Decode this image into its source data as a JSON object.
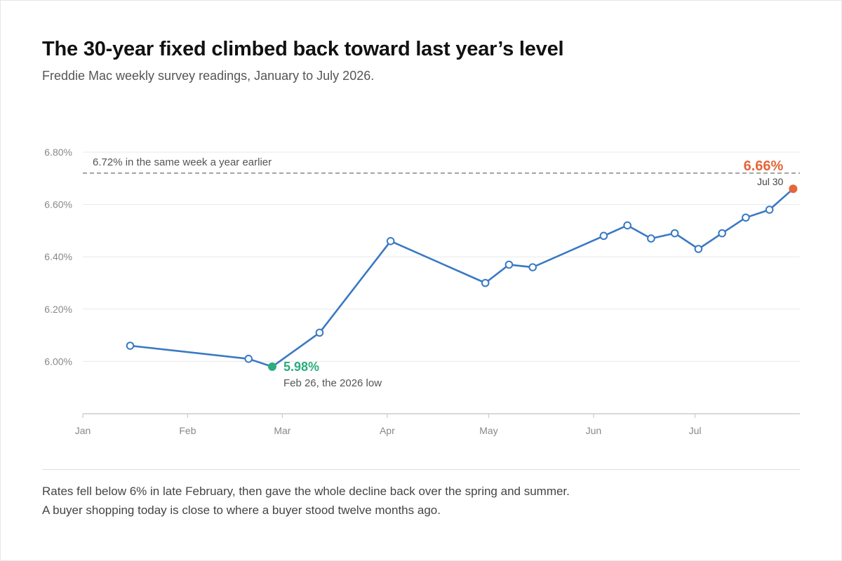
{
  "header": {
    "title": "The 30-year fixed climbed back toward last year’s level",
    "subtitle": "Freddie Mac weekly survey readings, January to July 2026."
  },
  "chart_data": {
    "type": "line",
    "title": "The 30-year fixed climbed back toward last year’s level",
    "subtitle": "Freddie Mac weekly survey readings, January to July 2026.",
    "xlabel": "",
    "ylabel": "",
    "x_ticks": [
      "Jan",
      "Feb",
      "Mar",
      "Apr",
      "May",
      "Jun",
      "Jul"
    ],
    "y_ticks": [
      "6.00%",
      "6.20%",
      "6.40%",
      "6.60%",
      "6.80%"
    ],
    "ylim": [
      5.8,
      6.8
    ],
    "xlim": [
      "2026-01-01",
      "2026-08-01"
    ],
    "grid": true,
    "series": [
      {
        "points": [
          {
            "date": "2026-01-15",
            "rate": 6.06
          },
          {
            "date": "2026-02-19",
            "rate": 6.01
          },
          {
            "date": "2026-02-26",
            "rate": 5.98
          },
          {
            "date": "2026-03-12",
            "rate": 6.11
          },
          {
            "date": "2026-04-02",
            "rate": 6.46
          },
          {
            "date": "2026-04-30",
            "rate": 6.3
          },
          {
            "date": "2026-05-07",
            "rate": 6.37
          },
          {
            "date": "2026-05-14",
            "rate": 6.36
          },
          {
            "date": "2026-06-04",
            "rate": 6.48
          },
          {
            "date": "2026-06-11",
            "rate": 6.52
          },
          {
            "date": "2026-06-18",
            "rate": 6.47
          },
          {
            "date": "2026-06-25",
            "rate": 6.49
          },
          {
            "date": "2026-07-02",
            "rate": 6.43
          },
          {
            "date": "2026-07-09",
            "rate": 6.49
          },
          {
            "date": "2026-07-16",
            "rate": 6.55
          },
          {
            "date": "2026-07-23",
            "rate": 6.58
          },
          {
            "date": "2026-07-30",
            "rate": 6.66
          }
        ]
      }
    ],
    "reference_line": {
      "value": 6.72,
      "label": "6.72% in the same week a year earlier"
    },
    "annotations": {
      "low": {
        "value_label": "5.98%",
        "note": "Feb 26, the 2026 low"
      },
      "latest": {
        "value_label": "6.66%",
        "note": "Jul 30"
      }
    },
    "colors": {
      "line": "#3a79c3",
      "low": "#2bac7c",
      "latest": "#e5663a",
      "reference": "#888888",
      "grid": "#e8e8e8",
      "axis": "#cccccc"
    }
  },
  "footer": {
    "lines": [
      "Rates fell below 6% in late February, then gave the whole decline back over the spring and summer.",
      "A buyer shopping today is close to where a buyer stood twelve months ago."
    ]
  }
}
